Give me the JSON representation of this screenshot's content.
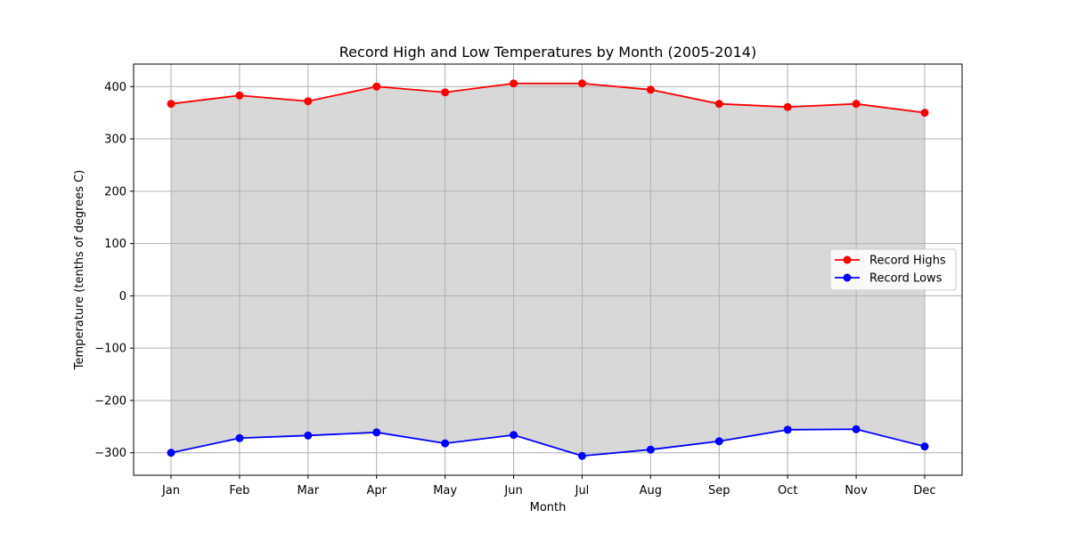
{
  "chart_data": {
    "type": "line",
    "title": "Record High and Low Temperatures by Month (2005-2014)",
    "xlabel": "Month",
    "ylabel": "Temperature (tenths of degrees C)",
    "categories": [
      "Jan",
      "Feb",
      "Mar",
      "Apr",
      "May",
      "Jun",
      "Jul",
      "Aug",
      "Sep",
      "Oct",
      "Nov",
      "Dec"
    ],
    "series": [
      {
        "name": "Record Highs",
        "color": "#ff0000",
        "values": [
          367,
          383,
          372,
          400,
          389,
          406,
          406,
          394,
          367,
          361,
          367,
          350
        ]
      },
      {
        "name": "Record Lows",
        "color": "#0000ff",
        "values": [
          -300,
          -272,
          -267,
          -261,
          -282,
          -266,
          -306,
          -294,
          -278,
          -256,
          -255,
          -288
        ]
      }
    ],
    "fill_between": {
      "color": "#d8d8d8",
      "between": [
        "Record Highs",
        "Record Lows"
      ]
    },
    "ylim": [
      -343,
      443
    ],
    "yticks": [
      -300,
      -200,
      -100,
      0,
      100,
      200,
      300,
      400
    ],
    "ytick_labels": [
      "−300",
      "−200",
      "−100",
      "0",
      "100",
      "200",
      "300",
      "400"
    ],
    "grid": true,
    "legend_position": "center-right"
  }
}
